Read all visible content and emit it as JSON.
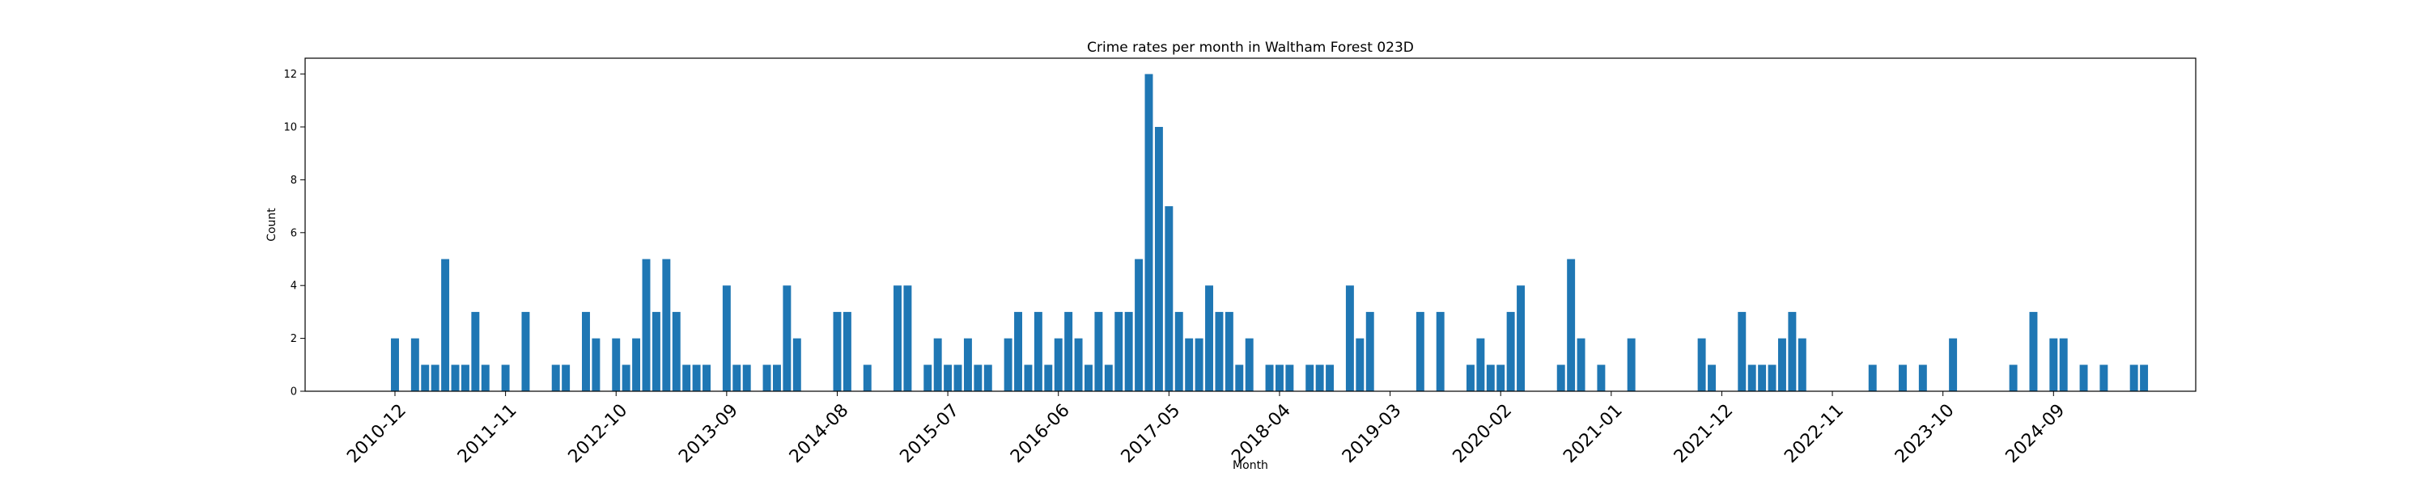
{
  "chart_data": {
    "type": "bar",
    "title": "Crime rates per month in Waltham Forest 023D",
    "xlabel": "Month",
    "ylabel": "Count",
    "ylim": [
      0,
      12.6
    ],
    "yticks": [
      0,
      2,
      4,
      6,
      8,
      10,
      12
    ],
    "grid": false,
    "start_month": "2010-12",
    "xtick_labels": [
      "2010-12",
      "2011-11",
      "2012-10",
      "2013-09",
      "2014-08",
      "2015-07",
      "2016-06",
      "2017-05",
      "2018-04",
      "2019-03",
      "2020-02",
      "2021-01",
      "2021-12",
      "2022-11",
      "2023-10",
      "2024-09"
    ],
    "bar_color": "#1f77b4",
    "values": [
      2,
      0,
      2,
      1,
      1,
      5,
      1,
      1,
      3,
      1,
      0,
      1,
      0,
      3,
      0,
      0,
      1,
      1,
      0,
      3,
      2,
      0,
      2,
      1,
      2,
      5,
      3,
      5,
      3,
      1,
      1,
      1,
      0,
      4,
      1,
      1,
      0,
      1,
      1,
      4,
      2,
      0,
      0,
      0,
      3,
      3,
      0,
      1,
      0,
      0,
      4,
      4,
      0,
      1,
      2,
      1,
      1,
      2,
      1,
      1,
      0,
      2,
      3,
      1,
      3,
      1,
      2,
      3,
      2,
      1,
      3,
      1,
      3,
      3,
      5,
      12,
      10,
      7,
      3,
      2,
      2,
      4,
      3,
      3,
      1,
      2,
      0,
      1,
      1,
      1,
      0,
      1,
      1,
      1,
      0,
      4,
      2,
      3,
      0,
      0,
      0,
      0,
      3,
      0,
      3,
      0,
      0,
      1,
      2,
      1,
      1,
      3,
      4,
      0,
      0,
      0,
      1,
      5,
      2,
      0,
      1,
      0,
      0,
      2,
      0,
      0,
      0,
      0,
      0,
      0,
      2,
      1,
      0,
      0,
      3,
      1,
      1,
      1,
      2,
      3,
      2,
      0,
      0,
      0,
      0,
      0,
      0,
      1,
      0,
      0,
      1,
      0,
      1,
      0,
      0,
      2,
      0,
      0,
      0,
      0,
      0,
      1,
      0,
      3,
      0,
      2,
      2,
      0,
      1,
      0,
      1,
      0,
      0,
      1,
      1
    ]
  }
}
